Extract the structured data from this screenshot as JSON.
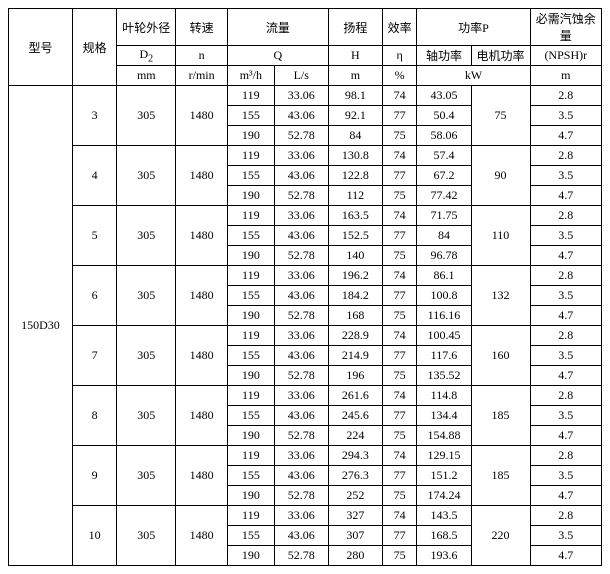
{
  "header": {
    "model": "型号",
    "spec": "规格",
    "d2_label": "叶轮外径",
    "d2_sym": "D",
    "d2_sub": "2",
    "d2_unit": "mm",
    "n_label": "转速",
    "n_sym": "n",
    "n_unit": "r/min",
    "q_label": "流量",
    "q_sym": "Q",
    "q_unit1": "m³/h",
    "q_unit2": "L/s",
    "h_label": "扬程",
    "h_sym": "H",
    "h_unit": "m",
    "eta_label": "效率",
    "eta_sym": "η",
    "eta_unit": "%",
    "p_label": "功率P",
    "p_shaft": "轴功率",
    "p_motor": "电机功率",
    "p_unit": "kW",
    "npsh_label": "必需汽蚀余量",
    "npsh_sym": "(NPSH)r",
    "npsh_unit": "m"
  },
  "model": "150D30",
  "groups": [
    {
      "spec": "3",
      "d2": "305",
      "n": "1480",
      "motor": "75",
      "rows": [
        {
          "q1": "119",
          "q2": "33.06",
          "h": "98.1",
          "eta": "74",
          "shaft": "43.05",
          "npsh": "2.8"
        },
        {
          "q1": "155",
          "q2": "43.06",
          "h": "92.1",
          "eta": "77",
          "shaft": "50.4",
          "npsh": "3.5"
        },
        {
          "q1": "190",
          "q2": "52.78",
          "h": "84",
          "eta": "75",
          "shaft": "58.06",
          "npsh": "4.7"
        }
      ]
    },
    {
      "spec": "4",
      "d2": "305",
      "n": "1480",
      "motor": "90",
      "rows": [
        {
          "q1": "119",
          "q2": "33.06",
          "h": "130.8",
          "eta": "74",
          "shaft": "57.4",
          "npsh": "2.8"
        },
        {
          "q1": "155",
          "q2": "43.06",
          "h": "122.8",
          "eta": "77",
          "shaft": "67.2",
          "npsh": "3.5"
        },
        {
          "q1": "190",
          "q2": "52.78",
          "h": "112",
          "eta": "75",
          "shaft": "77.42",
          "npsh": "4.7"
        }
      ]
    },
    {
      "spec": "5",
      "d2": "305",
      "n": "1480",
      "motor": "110",
      "rows": [
        {
          "q1": "119",
          "q2": "33.06",
          "h": "163.5",
          "eta": "74",
          "shaft": "71.75",
          "npsh": "2.8"
        },
        {
          "q1": "155",
          "q2": "43.06",
          "h": "152.5",
          "eta": "77",
          "shaft": "84",
          "npsh": "3.5"
        },
        {
          "q1": "190",
          "q2": "52.78",
          "h": "140",
          "eta": "75",
          "shaft": "96.78",
          "npsh": "4.7"
        }
      ]
    },
    {
      "spec": "6",
      "d2": "305",
      "n": "1480",
      "motor": "132",
      "rows": [
        {
          "q1": "119",
          "q2": "33.06",
          "h": "196.2",
          "eta": "74",
          "shaft": "86.1",
          "npsh": "2.8"
        },
        {
          "q1": "155",
          "q2": "43.06",
          "h": "184.2",
          "eta": "77",
          "shaft": "100.8",
          "npsh": "3.5"
        },
        {
          "q1": "190",
          "q2": "52.78",
          "h": "168",
          "eta": "75",
          "shaft": "116.16",
          "npsh": "4.7"
        }
      ]
    },
    {
      "spec": "7",
      "d2": "305",
      "n": "1480",
      "motor": "160",
      "rows": [
        {
          "q1": "119",
          "q2": "33.06",
          "h": "228.9",
          "eta": "74",
          "shaft": "100.45",
          "npsh": "2.8"
        },
        {
          "q1": "155",
          "q2": "43.06",
          "h": "214.9",
          "eta": "77",
          "shaft": "117.6",
          "npsh": "3.5"
        },
        {
          "q1": "190",
          "q2": "52.78",
          "h": "196",
          "eta": "75",
          "shaft": "135.52",
          "npsh": "4.7"
        }
      ]
    },
    {
      "spec": "8",
      "d2": "305",
      "n": "1480",
      "motor": "185",
      "rows": [
        {
          "q1": "119",
          "q2": "33.06",
          "h": "261.6",
          "eta": "74",
          "shaft": "114.8",
          "npsh": "2.8"
        },
        {
          "q1": "155",
          "q2": "43.06",
          "h": "245.6",
          "eta": "77",
          "shaft": "134.4",
          "npsh": "3.5"
        },
        {
          "q1": "190",
          "q2": "52.78",
          "h": "224",
          "eta": "75",
          "shaft": "154.88",
          "npsh": "4.7"
        }
      ]
    },
    {
      "spec": "9",
      "d2": "305",
      "n": "1480",
      "motor": "185",
      "rows": [
        {
          "q1": "119",
          "q2": "33.06",
          "h": "294.3",
          "eta": "74",
          "shaft": "129.15",
          "npsh": "2.8"
        },
        {
          "q1": "155",
          "q2": "43.06",
          "h": "276.3",
          "eta": "77",
          "shaft": "151.2",
          "npsh": "3.5"
        },
        {
          "q1": "190",
          "q2": "52.78",
          "h": "252",
          "eta": "75",
          "shaft": "174.24",
          "npsh": "4.7"
        }
      ]
    },
    {
      "spec": "10",
      "d2": "305",
      "n": "1480",
      "motor": "220",
      "rows": [
        {
          "q1": "119",
          "q2": "33.06",
          "h": "327",
          "eta": "74",
          "shaft": "143.5",
          "npsh": "2.8"
        },
        {
          "q1": "155",
          "q2": "43.06",
          "h": "307",
          "eta": "77",
          "shaft": "168.5",
          "npsh": "3.5"
        },
        {
          "q1": "190",
          "q2": "52.78",
          "h": "280",
          "eta": "75",
          "shaft": "193.6",
          "npsh": "4.7"
        }
      ]
    }
  ]
}
